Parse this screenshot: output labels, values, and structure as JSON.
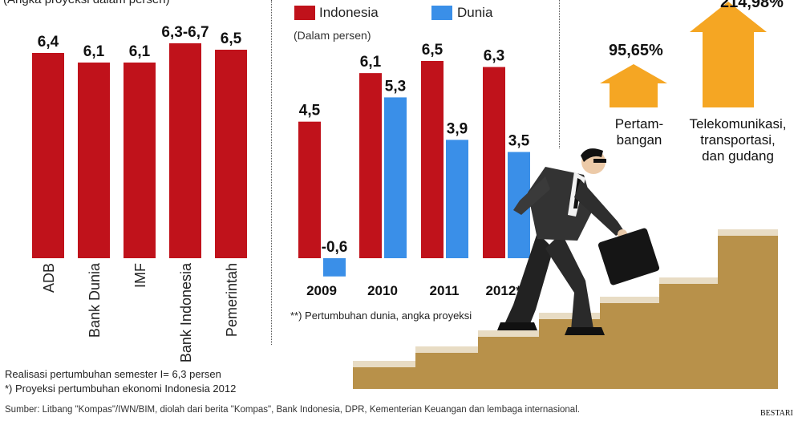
{
  "chart_data": [
    {
      "type": "bar",
      "title": "",
      "subtitle": "(Angka proyeksi dalam persen)",
      "categories": [
        "ADB",
        "Bank Dunia",
        "IMF",
        "Bank Indonesia",
        "Pemerintah"
      ],
      "values": [
        6.4,
        6.1,
        6.1,
        6.7,
        6.5
      ],
      "value_labels": [
        "6,4",
        "6,1",
        "6,1",
        "6,3-6,7",
        "6,5"
      ],
      "ylim": [
        0,
        6.8
      ],
      "color": "#c0121b"
    },
    {
      "type": "bar",
      "subtitle": "(Dalam persen)",
      "categories": [
        "2009",
        "2010",
        "2011",
        "2012**"
      ],
      "series": [
        {
          "name": "Indonesia",
          "color": "#c0121b",
          "values": [
            4.5,
            6.1,
            6.5,
            6.3
          ],
          "labels": [
            "4,5",
            "6,1",
            "6,5",
            "6,3"
          ]
        },
        {
          "name": "Dunia",
          "color": "#3a8fe8",
          "values": [
            -0.6,
            5.3,
            3.9,
            3.5
          ],
          "labels": [
            "-0,6",
            "5,3",
            "3,9",
            "3,5"
          ]
        }
      ],
      "ylim": [
        -0.6,
        6.8
      ],
      "note": "**) Pertumbuhan dunia, angka proyeksi"
    },
    {
      "type": "bar",
      "categories": [
        "Pertam-\nbangan",
        "Telekomunikasi,\ntransportasi,\ndan gudang"
      ],
      "values": [
        95.65,
        214.98
      ],
      "value_labels": [
        "95,65%",
        "214,98%"
      ],
      "color": "#f5a623"
    }
  ],
  "notes": {
    "realisasi": "Realisasi pertumbuhan semester I= 6,3 persen",
    "proyeksi": "*) Proyeksi pertumbuhan ekonomi Indonesia 2012",
    "sumber": "Sumber: Litbang \"Kompas\"/IWN/BIM, diolah dari berita \"Kompas\", Bank Indonesia, DPR, Kementerian Keuangan dan lembaga internasional.",
    "credit": "BESTARI"
  }
}
